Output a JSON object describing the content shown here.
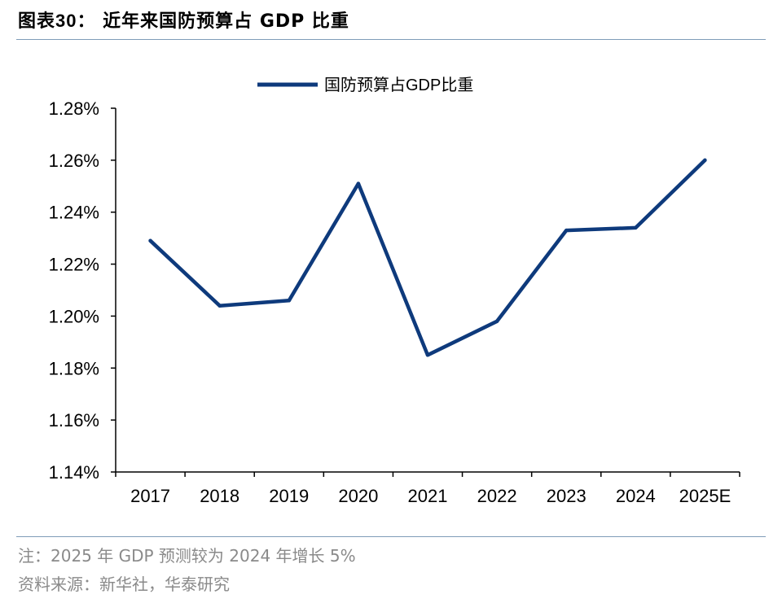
{
  "figure": {
    "title_prefix": "图表30：",
    "title": "近年来国防预算占 GDP 比重",
    "note": "注：2025 年 GDP 预测较为 2024 年增长 5%",
    "source": "资料来源：新华社，华泰研究"
  },
  "chart_data": {
    "type": "line",
    "categories": [
      "2017",
      "2018",
      "2019",
      "2020",
      "2021",
      "2022",
      "2023",
      "2024",
      "2025E"
    ],
    "series": [
      {
        "name": "国防预算占GDP比重",
        "values": [
          1.229,
          1.204,
          1.206,
          1.251,
          1.185,
          1.198,
          1.233,
          1.234,
          1.26
        ],
        "color": "#0e3a7c"
      }
    ],
    "y_ticks": [
      "1.14%",
      "1.16%",
      "1.18%",
      "1.20%",
      "1.22%",
      "1.24%",
      "1.26%",
      "1.28%"
    ],
    "ylim": [
      1.14,
      1.28
    ],
    "ylabel_unit": "%",
    "legend_position": "top-center",
    "grid": false,
    "axis_color": "#000000"
  }
}
